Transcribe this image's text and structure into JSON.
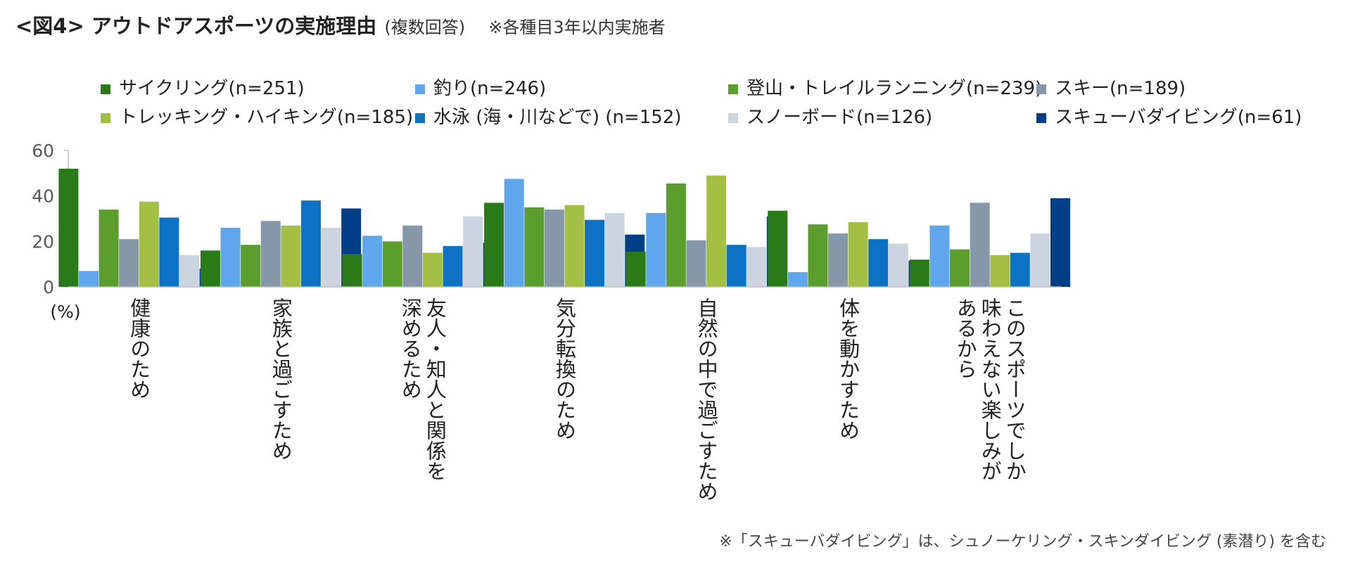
{
  "title": {
    "main": "<図4> アウトドアスポーツの実施理由",
    "sub": "(複数回答)",
    "note": "※各種目3年以内実施者"
  },
  "footnote": "※「スキューバダイビング」は、シュノーケリング・スキンダイビング (素潜り) を含む",
  "chart_data": {
    "type": "bar",
    "title": "<図4> アウトドアスポーツの実施理由",
    "ylabel": "(%)",
    "ylim": [
      0,
      60
    ],
    "yticks": [
      0,
      20,
      40,
      60
    ],
    "legend_position": "top",
    "categories": [
      [
        "健康のため"
      ],
      [
        "家族と過ごすため"
      ],
      [
        "友人・知人と関係を",
        "深めるため"
      ],
      [
        "気分転換のため"
      ],
      [
        "自然の中で過ごすため"
      ],
      [
        "体を動かすため"
      ],
      [
        "このスポーツでしか",
        "味わえない楽しみが",
        "あるから"
      ]
    ],
    "series": [
      {
        "name": "サイクリング(n=251)",
        "color": "#2a7a1a",
        "values": [
          52,
          16,
          14.5,
          37,
          15.5,
          33.5,
          12
        ]
      },
      {
        "name": "釣り(n=246)",
        "color": "#5fa6ec",
        "values": [
          7,
          26,
          22.5,
          47.5,
          32.5,
          6.5,
          27
        ]
      },
      {
        "name": "登山・トレイルランニング(n=239)",
        "color": "#5c9e2e",
        "values": [
          34,
          18.5,
          20,
          35,
          45.5,
          27.5,
          16.5
        ]
      },
      {
        "name": "スキー(n=189)",
        "color": "#8597a8",
        "values": [
          21,
          29,
          27,
          34,
          20.5,
          23.5,
          37
        ]
      },
      {
        "name": "トレッキング・ハイキング(n=185)",
        "color": "#a3bf44",
        "values": [
          37.5,
          27,
          15,
          36,
          49,
          28.5,
          14
        ]
      },
      {
        "name": "水泳 (海・川などで) (n=152)",
        "color": "#0e72c4",
        "values": [
          30.5,
          38,
          18,
          29.5,
          18.5,
          21,
          15
        ]
      },
      {
        "name": "スノーボード(n=126)",
        "color": "#ccd5df",
        "values": [
          14,
          26,
          31,
          32.5,
          17.5,
          19,
          23.5
        ]
      },
      {
        "name": "スキューバダイビング(n=61)",
        "color": "#003f87",
        "values": [
          8,
          34.5,
          19.5,
          23,
          31,
          11.5,
          39
        ]
      }
    ]
  }
}
